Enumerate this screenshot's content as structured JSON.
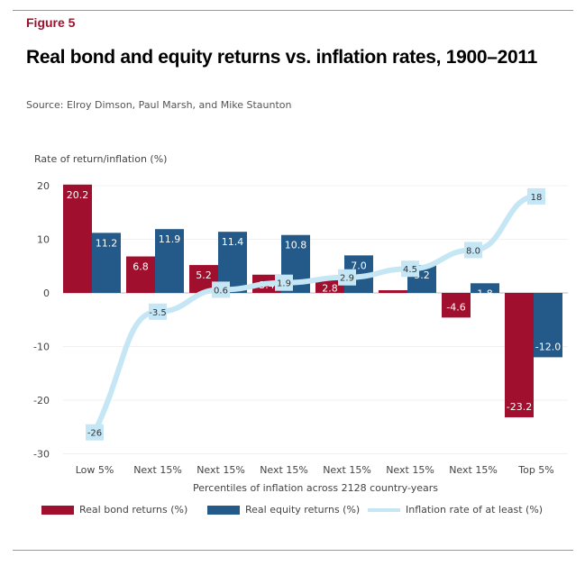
{
  "figure_label": "Figure 5",
  "title": "Real bond and equity returns vs. inflation rates, 1900–2011",
  "source": "Source: Elroy Dimson, Paul Marsh, and Mike Staunton",
  "chart_data": {
    "type": "bar",
    "title": "Real bond and equity returns vs. inflation rates, 1900–2011",
    "ylabel": "Rate of return/inflation (%)",
    "xlabel": "Percentiles of inflation across 2128 country-years",
    "ylim": [
      -30,
      20
    ],
    "yticks": [
      20,
      10,
      0,
      -10,
      -20,
      -30
    ],
    "grid": true,
    "legend": "bottom",
    "categories": [
      "Low 5%",
      "Next 15%",
      "Next 15%",
      "Next 15%",
      "Next 15%",
      "Next 15%",
      "Next 15%",
      "Top 5%"
    ],
    "series": [
      {
        "name": "Real bond returns (%)",
        "type": "bar",
        "color": "#a0102e",
        "values": [
          20.2,
          6.8,
          5.2,
          3.4,
          2.8,
          0.5,
          -4.6,
          -23.2
        ],
        "labels": [
          "20.2",
          "6.8",
          "5.2",
          "3.4",
          "2.8",
          "",
          "-4.6",
          "-23.2"
        ]
      },
      {
        "name": "Real equity returns (%)",
        "type": "bar",
        "color": "#235a8a",
        "values": [
          11.2,
          11.9,
          11.4,
          10.8,
          7.0,
          5.2,
          1.8,
          -12.0
        ],
        "labels": [
          "11.2",
          "11.9",
          "11.4",
          "10.8",
          "7.0",
          "5.2",
          "1.8",
          "-12.0"
        ]
      },
      {
        "name": "Inflation rate of at least (%)",
        "type": "line",
        "color": "#c4e6f5",
        "values": [
          -26,
          -3.5,
          0.6,
          1.9,
          2.9,
          4.5,
          8.0,
          18
        ],
        "labels": [
          "-26",
          "-3.5",
          "0.6",
          "1.9",
          "2.9",
          "4.5",
          "8.0",
          "18"
        ]
      }
    ]
  }
}
